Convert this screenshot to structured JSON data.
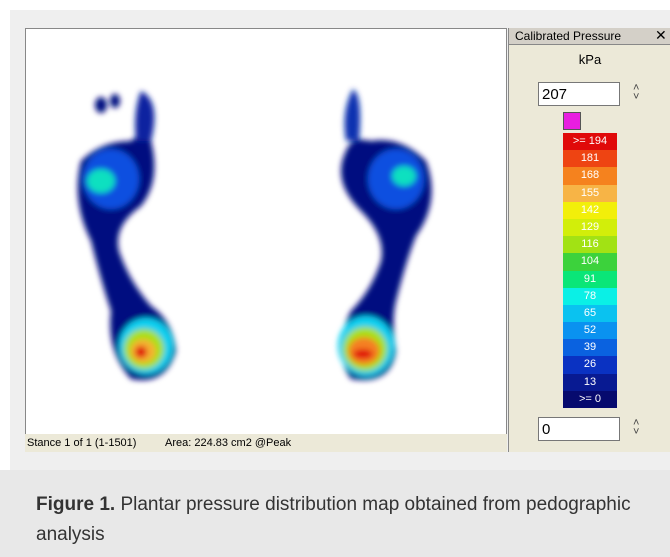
{
  "window": {
    "status": {
      "stance": "Stance 1 of 1 (1-1501)",
      "area": "Area: 224.83 cm2 @Peak"
    },
    "panel": {
      "title": "Calibrated Pressure",
      "unit": "kPa",
      "max_input": "207",
      "min_input": "0",
      "over_color": "#e81ee0",
      "scale": [
        {
          "label": ">= 194",
          "color": "#e00a0a"
        },
        {
          "label": "181",
          "color": "#ee4412"
        },
        {
          "label": "168",
          "color": "#f5821e"
        },
        {
          "label": "155",
          "color": "#f7b446"
        },
        {
          "label": "142",
          "color": "#f2ef0a"
        },
        {
          "label": "129",
          "color": "#d2ee0a"
        },
        {
          "label": "116",
          "color": "#a2e214"
        },
        {
          "label": "104",
          "color": "#3cd23c"
        },
        {
          "label": "91",
          "color": "#0ae678"
        },
        {
          "label": "78",
          "color": "#0af0e6"
        },
        {
          "label": "65",
          "color": "#0ac2f0"
        },
        {
          "label": "52",
          "color": "#0a92f0"
        },
        {
          "label": "39",
          "color": "#0a62e0"
        },
        {
          "label": "26",
          "color": "#0a32c2"
        },
        {
          "label": "13",
          "color": "#081a92"
        },
        {
          "label": ">= 0",
          "color": "#060a6e"
        }
      ]
    }
  },
  "caption": {
    "label": "Figure 1.",
    "text": "Plantar pressure distribution map obtained from pedographic analysis"
  }
}
